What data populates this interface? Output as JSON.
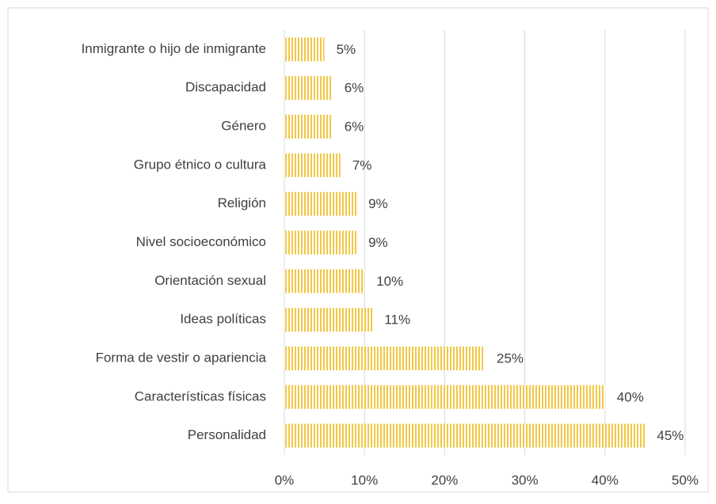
{
  "chart_data": {
    "type": "barh",
    "categories": [
      "Inmigrante o hijo de inmigrante",
      "Discapacidad",
      "Género",
      "Grupo étnico o cultura",
      "Religión",
      "Nivel socioeconómico",
      "Orientación sexual",
      "Ideas políticas",
      "Forma de vestir o apariencia",
      "Características físicas",
      "Personalidad"
    ],
    "values": [
      5,
      6,
      6,
      7,
      9,
      9,
      10,
      11,
      25,
      40,
      45
    ],
    "value_labels": [
      "5%",
      "6%",
      "6%",
      "7%",
      "9%",
      "9%",
      "10%",
      "11%",
      "25%",
      "40%",
      "45%"
    ],
    "color": "#f2c744",
    "xlim": [
      0,
      50
    ],
    "xticks": [
      {
        "value": 0,
        "label": "0%"
      },
      {
        "value": 10,
        "label": "10%"
      },
      {
        "value": 20,
        "label": "20%"
      },
      {
        "value": 30,
        "label": "30%"
      },
      {
        "value": 40,
        "label": "40%"
      },
      {
        "value": 50,
        "label": "50%"
      }
    ],
    "grid": true
  }
}
